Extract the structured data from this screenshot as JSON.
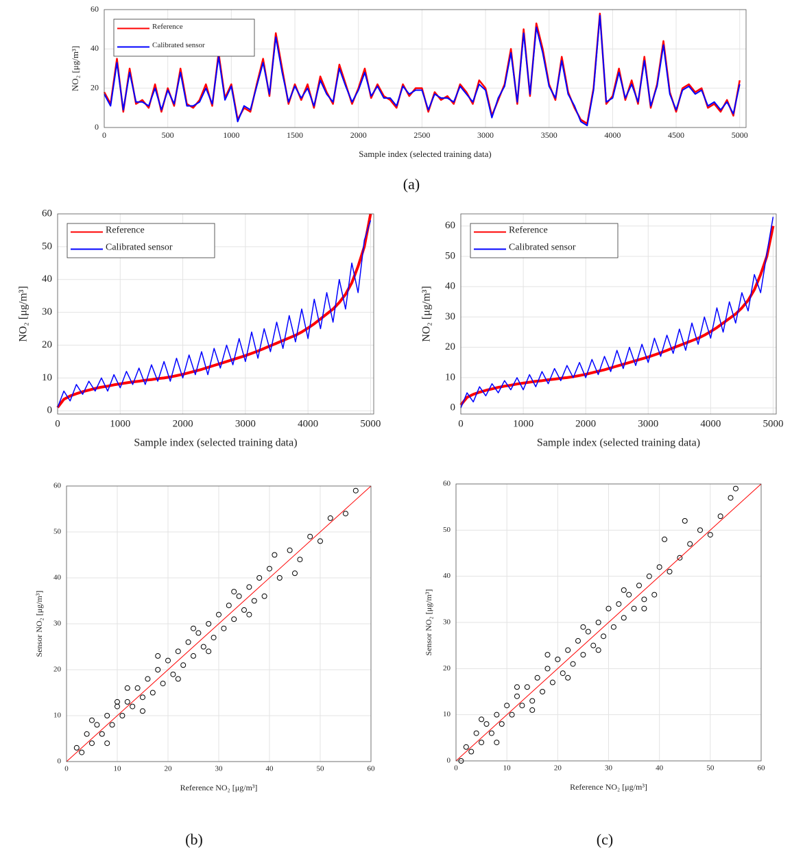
{
  "captions": [
    "(a)",
    "(b)",
    "(c)"
  ],
  "chart_data": [
    {
      "type": "line",
      "xlabel": "Sample index (selected training data)",
      "ylabel": "NO₂ [μg/m³]",
      "x": [
        0,
        50,
        100,
        150,
        200,
        250,
        300,
        350,
        400,
        450,
        500,
        550,
        600,
        650,
        700,
        750,
        800,
        850,
        900,
        950,
        1000,
        1050,
        1100,
        1150,
        1200,
        1250,
        1300,
        1350,
        1400,
        1450,
        1500,
        1550,
        1600,
        1650,
        1700,
        1750,
        1800,
        1850,
        1900,
        1950,
        2000,
        2050,
        2100,
        2150,
        2200,
        2250,
        2300,
        2350,
        2400,
        2450,
        2500,
        2550,
        2600,
        2650,
        2700,
        2750,
        2800,
        2850,
        2900,
        2950,
        3000,
        3050,
        3100,
        3150,
        3200,
        3250,
        3300,
        3350,
        3400,
        3450,
        3500,
        3550,
        3600,
        3650,
        3700,
        3750,
        3800,
        3850,
        3900,
        3950,
        4000,
        4050,
        4100,
        4150,
        4200,
        4250,
        4300,
        4350,
        4400,
        4450,
        4500,
        4550,
        4600,
        4650,
        4700,
        4750,
        4800,
        4850,
        4900,
        4950,
        5000
      ],
      "series": [
        {
          "name": "Reference",
          "color": "#ff0000",
          "width": 2.5,
          "values": [
            18,
            12,
            35,
            8,
            30,
            12,
            14,
            10,
            22,
            8,
            20,
            11,
            30,
            12,
            10,
            14,
            22,
            11,
            38,
            15,
            22,
            4,
            10,
            8,
            22,
            35,
            16,
            48,
            30,
            12,
            22,
            14,
            22,
            10,
            26,
            18,
            12,
            32,
            22,
            12,
            20,
            30,
            15,
            22,
            16,
            14,
            10,
            22,
            16,
            20,
            20,
            8,
            18,
            14,
            16,
            12,
            22,
            18,
            12,
            24,
            20,
            6,
            14,
            22,
            40,
            12,
            50,
            16,
            53,
            40,
            22,
            14,
            36,
            18,
            10,
            4,
            2,
            20,
            58,
            12,
            16,
            30,
            14,
            24,
            12,
            36,
            10,
            22,
            44,
            18,
            8,
            20,
            22,
            18,
            20,
            10,
            12,
            8,
            14,
            6,
            24
          ]
        },
        {
          "name": "Calibrated sensor",
          "color": "#0000ff",
          "width": 2,
          "values": [
            17,
            11,
            33,
            9,
            28,
            13,
            13,
            11,
            20,
            9,
            19,
            12,
            28,
            11,
            11,
            13,
            20,
            12,
            36,
            14,
            21,
            3,
            11,
            9,
            21,
            33,
            17,
            46,
            28,
            13,
            21,
            15,
            20,
            11,
            24,
            17,
            13,
            30,
            21,
            13,
            19,
            28,
            16,
            21,
            15,
            15,
            11,
            21,
            17,
            19,
            19,
            9,
            17,
            15,
            15,
            13,
            21,
            17,
            13,
            22,
            19,
            5,
            15,
            21,
            38,
            13,
            48,
            17,
            51,
            38,
            21,
            15,
            34,
            17,
            11,
            3,
            1,
            19,
            57,
            13,
            15,
            28,
            15,
            22,
            13,
            34,
            11,
            21,
            42,
            17,
            9,
            19,
            21,
            17,
            19,
            11,
            13,
            9,
            13,
            7,
            22
          ]
        }
      ],
      "xlim": [
        0,
        5050
      ],
      "ylim": [
        0,
        60
      ],
      "xticks": [
        0,
        500,
        1000,
        1500,
        2000,
        2500,
        3000,
        3500,
        4000,
        4500,
        5000
      ],
      "yticks": [
        0,
        20,
        40,
        60
      ],
      "grid": true,
      "legend": "upper-left"
    },
    {
      "type": "line",
      "xlabel": "Sample index (selected training data)",
      "ylabel": "NO₂ [μg/m³]",
      "x": [
        0,
        100,
        200,
        300,
        400,
        500,
        600,
        700,
        800,
        900,
        1000,
        1100,
        1200,
        1300,
        1400,
        1500,
        1600,
        1700,
        1800,
        1900,
        2000,
        2100,
        2200,
        2300,
        2400,
        2500,
        2600,
        2700,
        2800,
        2900,
        3000,
        3100,
        3200,
        3300,
        3400,
        3500,
        3600,
        3700,
        3800,
        3900,
        4000,
        4100,
        4200,
        4300,
        4400,
        4500,
        4600,
        4700,
        4800,
        4900,
        5000
      ],
      "series": [
        {
          "name": "Reference",
          "color": "#ff0000",
          "width": 4,
          "values": [
            1,
            3.5,
            4.5,
            5.2,
            5.8,
            6.3,
            6.8,
            7.2,
            7.5,
            7.9,
            8.2,
            8.5,
            8.8,
            9,
            9.3,
            9.5,
            9.8,
            10,
            10.3,
            10.7,
            11.1,
            11.6,
            12.1,
            12.6,
            13.2,
            13.8,
            14.4,
            15,
            15.6,
            16.2,
            16.8,
            17.5,
            18.2,
            19,
            19.8,
            20.6,
            21.4,
            22.2,
            23,
            24,
            25.2,
            26.5,
            28,
            29.5,
            31,
            33,
            35.5,
            39,
            44,
            50,
            60
          ]
        },
        {
          "name": "Calibrated sensor",
          "color": "#0000ff",
          "width": 1.5,
          "values": [
            1,
            6,
            3,
            8,
            5,
            9,
            6,
            10,
            6,
            11,
            7,
            12,
            8,
            13,
            8,
            14,
            9,
            15,
            9,
            16,
            10,
            17,
            11,
            18,
            11,
            19,
            13,
            20,
            14,
            22,
            15,
            24,
            16,
            25,
            18,
            27,
            19,
            29,
            21,
            31,
            22,
            34,
            25,
            36,
            27,
            40,
            31,
            45,
            36,
            52,
            58
          ]
        }
      ],
      "xlim": [
        0,
        5050
      ],
      "ylim": [
        -1,
        60
      ],
      "xticks": [
        0,
        1000,
        2000,
        3000,
        4000,
        5000
      ],
      "yticks": [
        0,
        10,
        20,
        30,
        40,
        50,
        60
      ],
      "grid": true,
      "legend": "upper-left"
    },
    {
      "type": "line",
      "xlabel": "Sample index (selected training data)",
      "ylabel": "NO₂ [μg/m³]",
      "x": [
        0,
        100,
        200,
        300,
        400,
        500,
        600,
        700,
        800,
        900,
        1000,
        1100,
        1200,
        1300,
        1400,
        1500,
        1600,
        1700,
        1800,
        1900,
        2000,
        2100,
        2200,
        2300,
        2400,
        2500,
        2600,
        2700,
        2800,
        2900,
        3000,
        3100,
        3200,
        3300,
        3400,
        3500,
        3600,
        3700,
        3800,
        3900,
        4000,
        4100,
        4200,
        4300,
        4400,
        4500,
        4600,
        4700,
        4800,
        4900,
        5000
      ],
      "series": [
        {
          "name": "Reference",
          "color": "#ff0000",
          "width": 4,
          "values": [
            1,
            3.5,
            4.5,
            5.2,
            5.8,
            6.3,
            6.8,
            7.2,
            7.5,
            7.9,
            8.2,
            8.5,
            8.8,
            9,
            9.3,
            9.5,
            9.8,
            10,
            10.3,
            10.7,
            11.1,
            11.6,
            12.1,
            12.6,
            13.2,
            13.8,
            14.4,
            15,
            15.6,
            16.2,
            16.8,
            17.5,
            18.2,
            19,
            19.8,
            20.6,
            21.4,
            22.2,
            23,
            24,
            25.2,
            26.5,
            28,
            29.5,
            31,
            33,
            35.5,
            39,
            44,
            50,
            60
          ]
        },
        {
          "name": "Calibrated sensor",
          "color": "#0000ff",
          "width": 1.5,
          "values": [
            0,
            5,
            2,
            7,
            4,
            8,
            5,
            9,
            6,
            10,
            6,
            11,
            7,
            12,
            8,
            13,
            9,
            14,
            10,
            15,
            10,
            16,
            11,
            17,
            12,
            19,
            13,
            20,
            14,
            21,
            15,
            23,
            17,
            24,
            18,
            26,
            19,
            28,
            21,
            30,
            23,
            33,
            25,
            35,
            28,
            38,
            32,
            44,
            38,
            51,
            63
          ]
        }
      ],
      "xlim": [
        0,
        5050
      ],
      "ylim": [
        -2,
        64
      ],
      "xticks": [
        0,
        1000,
        2000,
        3000,
        4000,
        5000
      ],
      "yticks": [
        0,
        10,
        20,
        30,
        40,
        50,
        60
      ],
      "grid": true,
      "legend": "upper-left"
    },
    {
      "type": "scatter",
      "xlabel": "Reference NO₂ [μg/m³]",
      "ylabel": "Sensor NO₂ [μg/m³]",
      "color": "#000000",
      "x": [
        2,
        3,
        4,
        5,
        6,
        7,
        8,
        9,
        10,
        11,
        12,
        13,
        14,
        15,
        16,
        17,
        18,
        19,
        20,
        21,
        22,
        23,
        24,
        25,
        26,
        27,
        28,
        29,
        30,
        31,
        32,
        33,
        34,
        35,
        36,
        37,
        38,
        39,
        40,
        42,
        44,
        46,
        48,
        50,
        52,
        55,
        57,
        5,
        8,
        12,
        15,
        18,
        22,
        25,
        28,
        33,
        36,
        41,
        45,
        10
      ],
      "values": [
        3,
        2,
        6,
        4,
        8,
        6,
        10,
        8,
        12,
        10,
        13,
        12,
        16,
        14,
        18,
        15,
        20,
        17,
        22,
        19,
        24,
        21,
        26,
        23,
        28,
        25,
        30,
        27,
        32,
        29,
        34,
        31,
        36,
        33,
        38,
        35,
        40,
        36,
        42,
        40,
        46,
        44,
        49,
        48,
        53,
        54,
        59,
        9,
        4,
        16,
        11,
        23,
        18,
        29,
        24,
        37,
        32,
        45,
        41,
        13
      ],
      "reference_line": {
        "x": [
          0,
          60
        ],
        "values": [
          0,
          60
        ],
        "color": "#ff0000"
      },
      "xlim": [
        0,
        60
      ],
      "ylim": [
        0,
        60
      ],
      "xticks": [
        0,
        10,
        20,
        30,
        40,
        50,
        60
      ],
      "yticks": [
        0,
        10,
        20,
        30,
        40,
        50,
        60
      ],
      "grid": true
    },
    {
      "type": "scatter",
      "xlabel": "Reference NO₂ [μg/m³]",
      "ylabel": "Sensor NO₂ [μg/m³]",
      "color": "#000000",
      "x": [
        1,
        2,
        3,
        4,
        5,
        6,
        7,
        8,
        9,
        10,
        11,
        12,
        13,
        14,
        15,
        16,
        17,
        18,
        19,
        20,
        21,
        22,
        23,
        24,
        25,
        26,
        27,
        28,
        29,
        30,
        31,
        32,
        33,
        34,
        35,
        36,
        37,
        38,
        39,
        40,
        42,
        44,
        46,
        48,
        50,
        52,
        54,
        55,
        5,
        8,
        12,
        15,
        18,
        22,
        25,
        28,
        33,
        37,
        41,
        45
      ],
      "values": [
        0,
        3,
        2,
        6,
        4,
        8,
        6,
        10,
        8,
        12,
        10,
        14,
        12,
        16,
        13,
        18,
        15,
        20,
        17,
        22,
        19,
        24,
        21,
        26,
        23,
        28,
        25,
        30,
        27,
        33,
        29,
        34,
        31,
        36,
        33,
        38,
        35,
        40,
        36,
        42,
        41,
        44,
        47,
        50,
        49,
        53,
        57,
        59,
        9,
        4,
        16,
        11,
        23,
        18,
        29,
        24,
        37,
        33,
        48,
        52
      ],
      "reference_line": {
        "x": [
          0,
          60
        ],
        "values": [
          0,
          60
        ],
        "color": "#ff0000"
      },
      "xlim": [
        0,
        60
      ],
      "ylim": [
        0,
        60
      ],
      "xticks": [
        0,
        10,
        20,
        30,
        40,
        50,
        60
      ],
      "yticks": [
        0,
        10,
        20,
        30,
        40,
        50,
        60
      ],
      "grid": true
    }
  ]
}
